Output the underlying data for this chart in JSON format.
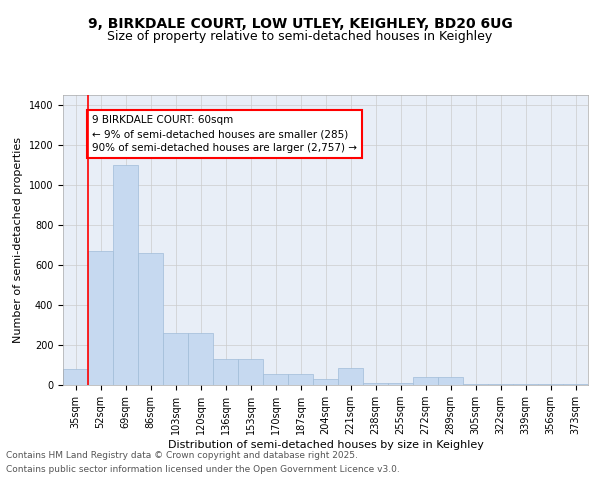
{
  "title1": "9, BIRKDALE COURT, LOW UTLEY, KEIGHLEY, BD20 6UG",
  "title2": "Size of property relative to semi-detached houses in Keighley",
  "xlabel": "Distribution of semi-detached houses by size in Keighley",
  "ylabel": "Number of semi-detached properties",
  "categories": [
    "35sqm",
    "52sqm",
    "69sqm",
    "86sqm",
    "103sqm",
    "120sqm",
    "136sqm",
    "153sqm",
    "170sqm",
    "187sqm",
    "204sqm",
    "221sqm",
    "238sqm",
    "255sqm",
    "272sqm",
    "289sqm",
    "305sqm",
    "322sqm",
    "339sqm",
    "356sqm",
    "373sqm"
  ],
  "values": [
    80,
    670,
    1100,
    660,
    260,
    260,
    130,
    130,
    55,
    55,
    30,
    85,
    10,
    10,
    40,
    40,
    5,
    5,
    5,
    5,
    5
  ],
  "bar_color": "#c6d9f0",
  "bar_edge_color": "#a0bcd8",
  "bar_linewidth": 0.5,
  "vline_color": "red",
  "vline_linewidth": 1.2,
  "vline_pos": 0.5,
  "annotation_title": "9 BIRKDALE COURT: 60sqm",
  "annotation_line1": "← 9% of semi-detached houses are smaller (285)",
  "annotation_line2": "90% of semi-detached houses are larger (2,757) →",
  "annotation_box_color": "white",
  "annotation_box_edge": "red",
  "ylim": [
    0,
    1450
  ],
  "yticks": [
    0,
    200,
    400,
    600,
    800,
    1000,
    1200,
    1400
  ],
  "grid_color": "#cccccc",
  "bg_color": "#e8eef7",
  "footer1": "Contains HM Land Registry data © Crown copyright and database right 2025.",
  "footer2": "Contains public sector information licensed under the Open Government Licence v3.0.",
  "title_fontsize": 10,
  "subtitle_fontsize": 9,
  "axis_label_fontsize": 8,
  "tick_fontsize": 7,
  "annotation_fontsize": 7.5,
  "footer_fontsize": 6.5
}
